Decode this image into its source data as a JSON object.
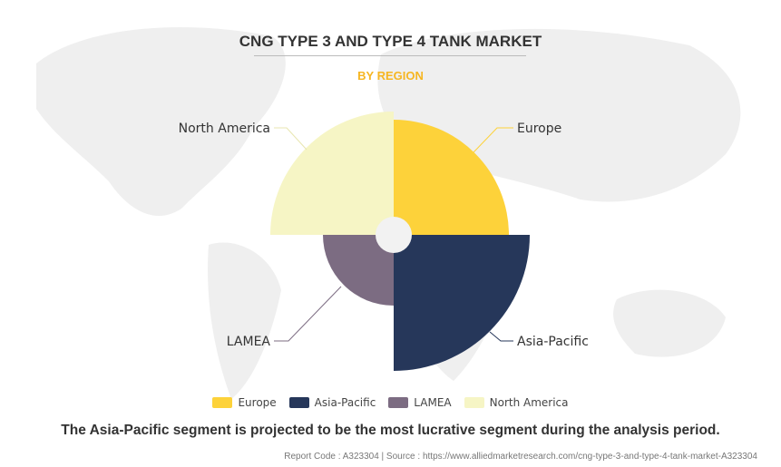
{
  "header": {
    "title": "CNG TYPE 3 AND TYPE 4 TANK MARKET",
    "subtitle": "BY REGION"
  },
  "chart_data": {
    "type": "polar-area",
    "title": "CNG TYPE 3 AND TYPE 4 TANK MARKET",
    "subtitle": "BY REGION",
    "categories": [
      "Europe",
      "Asia-Pacific",
      "LAMEA",
      "North America"
    ],
    "values": [
      127,
      150,
      78,
      136
    ],
    "value_note": "relative magnitudes (no values printed)",
    "colors": [
      "#fdd23a",
      "#26375a",
      "#7c6c82",
      "#f6f5c5"
    ],
    "legend_position": "bottom"
  },
  "note": "The Asia-Pacific segment is projected to be the most lucrative segment during the analysis period.",
  "footer": "Report Code : A323304  |  Source : https://www.alliedmarketresearch.com/cng-type-3-and-type-4-tank-market-A323304"
}
